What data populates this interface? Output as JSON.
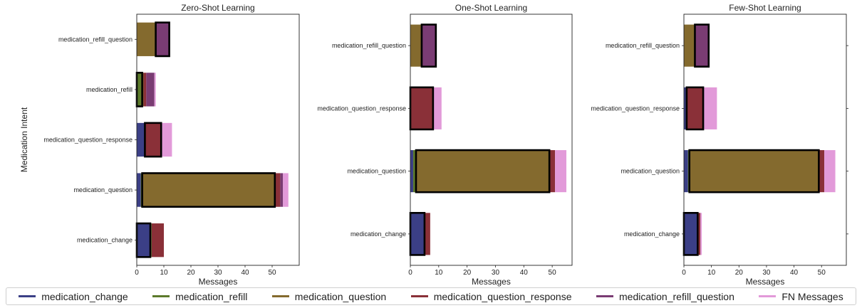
{
  "colors": {
    "medication_change": "#3b3f86",
    "medication_refill": "#5c7a2b",
    "medication_question": "#846a2e",
    "medication_question_response": "#8a3038",
    "medication_refill_question": "#7a3c73",
    "fn": "#e29ad9"
  },
  "legend": [
    {
      "label": "medication_change",
      "key": "medication_change"
    },
    {
      "label": "medication_refill",
      "key": "medication_refill"
    },
    {
      "label": "medication_question",
      "key": "medication_question"
    },
    {
      "label": "medication_question_response",
      "key": "medication_question_response"
    },
    {
      "label": "medication_refill_question",
      "key": "medication_refill_question"
    },
    {
      "label": "FN Messages",
      "key": "fn"
    }
  ],
  "chart_data": [
    {
      "type": "bar",
      "orientation": "horizontal",
      "stacked": true,
      "title": "Zero-Shot Learning",
      "xlabel": "Messages",
      "ylabel": "Medication Intent",
      "xlim": [
        0,
        60
      ],
      "xticks": [
        0,
        10,
        20,
        30,
        40,
        50
      ],
      "categories": [
        "medication_change",
        "medication_question",
        "medication_question_response",
        "medication_refill",
        "medication_refill_question"
      ],
      "series": [
        {
          "name": "medication_change",
          "values": [
            5,
            1.5,
            3,
            0,
            0
          ]
        },
        {
          "name": "medication_refill",
          "values": [
            0.5,
            0.5,
            0,
            2,
            0
          ]
        },
        {
          "name": "medication_question",
          "values": [
            0,
            49,
            0,
            0.5,
            7
          ]
        },
        {
          "name": "medication_question_response",
          "values": [
            4.5,
            2,
            6,
            1,
            0
          ]
        },
        {
          "name": "medication_refill_question",
          "values": [
            0,
            1,
            0,
            3,
            5
          ]
        },
        {
          "name": "FN Messages",
          "values": [
            0,
            2,
            4,
            0.5,
            0
          ]
        }
      ],
      "correct_series": [
        "medication_change",
        "medication_question",
        "medication_question_response",
        "medication_refill",
        "medication_refill_question"
      ]
    },
    {
      "type": "bar",
      "orientation": "horizontal",
      "stacked": true,
      "title": "One-Shot Learning",
      "xlabel": "Messages",
      "ylabel": "",
      "xlim": [
        0,
        57
      ],
      "xticks": [
        0,
        10,
        20,
        30,
        40,
        50
      ],
      "categories": [
        "medication_change",
        "medication_question",
        "medication_question_response",
        "medication_refill_question"
      ],
      "series": [
        {
          "name": "medication_change",
          "values": [
            5,
            1,
            0,
            0
          ]
        },
        {
          "name": "medication_refill",
          "values": [
            0,
            1,
            0,
            0
          ]
        },
        {
          "name": "medication_question",
          "values": [
            0,
            47,
            0,
            4
          ]
        },
        {
          "name": "medication_question_response",
          "values": [
            2,
            2,
            8,
            0
          ]
        },
        {
          "name": "medication_refill_question",
          "values": [
            0,
            0,
            0,
            5
          ]
        },
        {
          "name": "FN Messages",
          "values": [
            0,
            4,
            3,
            0
          ]
        }
      ],
      "correct_series": [
        "medication_change",
        "medication_question",
        "medication_question_response",
        "medication_refill_question"
      ]
    },
    {
      "type": "bar",
      "orientation": "horizontal",
      "stacked": true,
      "title": "Few-Shot Learning",
      "xlabel": "Messages",
      "ylabel": "",
      "xlim": [
        0,
        59
      ],
      "xticks": [
        0,
        10,
        20,
        30,
        40,
        50
      ],
      "categories": [
        "medication_change",
        "medication_question",
        "medication_question_response",
        "medication_refill_question"
      ],
      "series": [
        {
          "name": "medication_change",
          "values": [
            5,
            1.5,
            1,
            0
          ]
        },
        {
          "name": "medication_refill",
          "values": [
            0,
            0.5,
            0,
            0
          ]
        },
        {
          "name": "medication_question",
          "values": [
            0,
            47,
            0,
            4
          ]
        },
        {
          "name": "medication_question_response",
          "values": [
            1,
            2,
            6,
            0
          ]
        },
        {
          "name": "medication_refill_question",
          "values": [
            0,
            0,
            0,
            5
          ]
        },
        {
          "name": "FN Messages",
          "values": [
            0.5,
            4,
            5,
            0
          ]
        }
      ],
      "correct_series": [
        "medication_change",
        "medication_question",
        "medication_question_response",
        "medication_refill_question"
      ]
    }
  ]
}
